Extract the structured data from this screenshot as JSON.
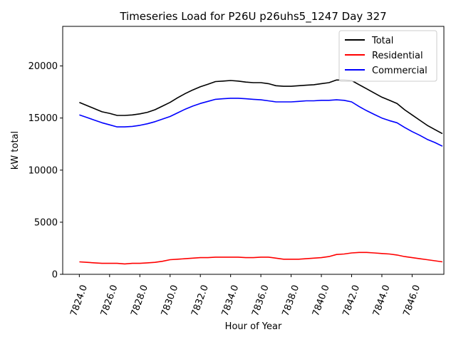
{
  "chart_data": {
    "type": "line",
    "title": "Timeseries Load for P26U p26uhs5_1247  Day 327",
    "xlabel": "Hour of Year",
    "ylabel": "kW total",
    "xlim": [
      7822.9,
      7848.1
    ],
    "ylim": [
      0,
      23800
    ],
    "xticks": [
      7824,
      7826,
      7828,
      7830,
      7832,
      7834,
      7836,
      7838,
      7840,
      7842,
      7844,
      7846
    ],
    "xtick_labels": [
      "7824.0",
      "7826.0",
      "7828.0",
      "7830.0",
      "7832.0",
      "7834.0",
      "7836.0",
      "7838.0",
      "7840.0",
      "7842.0",
      "7844.0",
      "7846.0"
    ],
    "yticks": [
      0,
      5000,
      10000,
      15000,
      20000
    ],
    "ytick_labels": [
      "0",
      "5000",
      "10000",
      "15000",
      "20000"
    ],
    "legend_position": "top-right",
    "series": [
      {
        "name": "Total",
        "color": "#000000",
        "points": [
          [
            7824.0,
            16500
          ],
          [
            7824.5,
            16200
          ],
          [
            7825.0,
            15900
          ],
          [
            7825.5,
            15600
          ],
          [
            7826.0,
            15450
          ],
          [
            7826.5,
            15250
          ],
          [
            7827.0,
            15250
          ],
          [
            7827.5,
            15300
          ],
          [
            7828.0,
            15400
          ],
          [
            7828.5,
            15550
          ],
          [
            7829.0,
            15800
          ],
          [
            7829.5,
            16150
          ],
          [
            7830.0,
            16500
          ],
          [
            7830.5,
            16950
          ],
          [
            7831.0,
            17350
          ],
          [
            7831.5,
            17700
          ],
          [
            7832.0,
            18000
          ],
          [
            7832.5,
            18250
          ],
          [
            7833.0,
            18500
          ],
          [
            7833.5,
            18550
          ],
          [
            7834.0,
            18600
          ],
          [
            7834.5,
            18550
          ],
          [
            7835.0,
            18450
          ],
          [
            7835.5,
            18400
          ],
          [
            7836.0,
            18400
          ],
          [
            7836.5,
            18300
          ],
          [
            7837.0,
            18100
          ],
          [
            7837.5,
            18050
          ],
          [
            7838.0,
            18050
          ],
          [
            7838.5,
            18100
          ],
          [
            7839.0,
            18150
          ],
          [
            7839.5,
            18200
          ],
          [
            7840.0,
            18300
          ],
          [
            7840.5,
            18400
          ],
          [
            7841.0,
            18650
          ],
          [
            7841.5,
            18650
          ],
          [
            7842.0,
            18600
          ],
          [
            7842.5,
            18200
          ],
          [
            7843.0,
            17800
          ],
          [
            7843.5,
            17400
          ],
          [
            7844.0,
            17000
          ],
          [
            7844.5,
            16700
          ],
          [
            7845.0,
            16400
          ],
          [
            7845.5,
            15800
          ],
          [
            7846.0,
            15300
          ],
          [
            7846.5,
            14800
          ],
          [
            7847.0,
            14300
          ],
          [
            7847.5,
            13900
          ],
          [
            7848.0,
            13500
          ]
        ]
      },
      {
        "name": "Residential",
        "color": "#ff0000",
        "points": [
          [
            7824.0,
            1200
          ],
          [
            7824.5,
            1150
          ],
          [
            7825.0,
            1100
          ],
          [
            7825.5,
            1050
          ],
          [
            7826.0,
            1050
          ],
          [
            7826.5,
            1050
          ],
          [
            7827.0,
            1000
          ],
          [
            7827.5,
            1050
          ],
          [
            7828.0,
            1050
          ],
          [
            7828.5,
            1100
          ],
          [
            7829.0,
            1150
          ],
          [
            7829.5,
            1250
          ],
          [
            7830.0,
            1400
          ],
          [
            7830.5,
            1450
          ],
          [
            7831.0,
            1500
          ],
          [
            7831.5,
            1550
          ],
          [
            7832.0,
            1600
          ],
          [
            7832.5,
            1600
          ],
          [
            7833.0,
            1650
          ],
          [
            7833.5,
            1650
          ],
          [
            7834.0,
            1650
          ],
          [
            7834.5,
            1650
          ],
          [
            7835.0,
            1600
          ],
          [
            7835.5,
            1600
          ],
          [
            7836.0,
            1650
          ],
          [
            7836.5,
            1650
          ],
          [
            7837.0,
            1550
          ],
          [
            7837.5,
            1450
          ],
          [
            7838.0,
            1450
          ],
          [
            7838.5,
            1450
          ],
          [
            7839.0,
            1500
          ],
          [
            7839.5,
            1550
          ],
          [
            7840.0,
            1600
          ],
          [
            7840.5,
            1700
          ],
          [
            7841.0,
            1900
          ],
          [
            7841.5,
            1950
          ],
          [
            7842.0,
            2050
          ],
          [
            7842.5,
            2100
          ],
          [
            7843.0,
            2100
          ],
          [
            7843.5,
            2050
          ],
          [
            7844.0,
            2000
          ],
          [
            7844.5,
            1950
          ],
          [
            7845.0,
            1850
          ],
          [
            7845.5,
            1700
          ],
          [
            7846.0,
            1600
          ],
          [
            7846.5,
            1500
          ],
          [
            7847.0,
            1400
          ],
          [
            7847.5,
            1300
          ],
          [
            7848.0,
            1200
          ]
        ]
      },
      {
        "name": "Commercial",
        "color": "#0000ff",
        "points": [
          [
            7824.0,
            15300
          ],
          [
            7824.5,
            15050
          ],
          [
            7825.0,
            14800
          ],
          [
            7825.5,
            14550
          ],
          [
            7826.0,
            14350
          ],
          [
            7826.5,
            14150
          ],
          [
            7827.0,
            14150
          ],
          [
            7827.5,
            14200
          ],
          [
            7828.0,
            14300
          ],
          [
            7828.5,
            14450
          ],
          [
            7829.0,
            14650
          ],
          [
            7829.5,
            14900
          ],
          [
            7830.0,
            15150
          ],
          [
            7830.5,
            15500
          ],
          [
            7831.0,
            15850
          ],
          [
            7831.5,
            16150
          ],
          [
            7832.0,
            16400
          ],
          [
            7832.5,
            16600
          ],
          [
            7833.0,
            16800
          ],
          [
            7833.5,
            16850
          ],
          [
            7834.0,
            16900
          ],
          [
            7834.5,
            16900
          ],
          [
            7835.0,
            16850
          ],
          [
            7835.5,
            16800
          ],
          [
            7836.0,
            16750
          ],
          [
            7836.5,
            16650
          ],
          [
            7837.0,
            16550
          ],
          [
            7837.5,
            16550
          ],
          [
            7838.0,
            16550
          ],
          [
            7838.5,
            16600
          ],
          [
            7839.0,
            16650
          ],
          [
            7839.5,
            16650
          ],
          [
            7840.0,
            16700
          ],
          [
            7840.5,
            16700
          ],
          [
            7841.0,
            16750
          ],
          [
            7841.5,
            16700
          ],
          [
            7842.0,
            16550
          ],
          [
            7842.5,
            16100
          ],
          [
            7843.0,
            15700
          ],
          [
            7843.5,
            15350
          ],
          [
            7844.0,
            15000
          ],
          [
            7844.5,
            14750
          ],
          [
            7845.0,
            14550
          ],
          [
            7845.5,
            14100
          ],
          [
            7846.0,
            13700
          ],
          [
            7846.5,
            13350
          ],
          [
            7847.0,
            12950
          ],
          [
            7847.5,
            12650
          ],
          [
            7848.0,
            12300
          ]
        ]
      }
    ]
  }
}
